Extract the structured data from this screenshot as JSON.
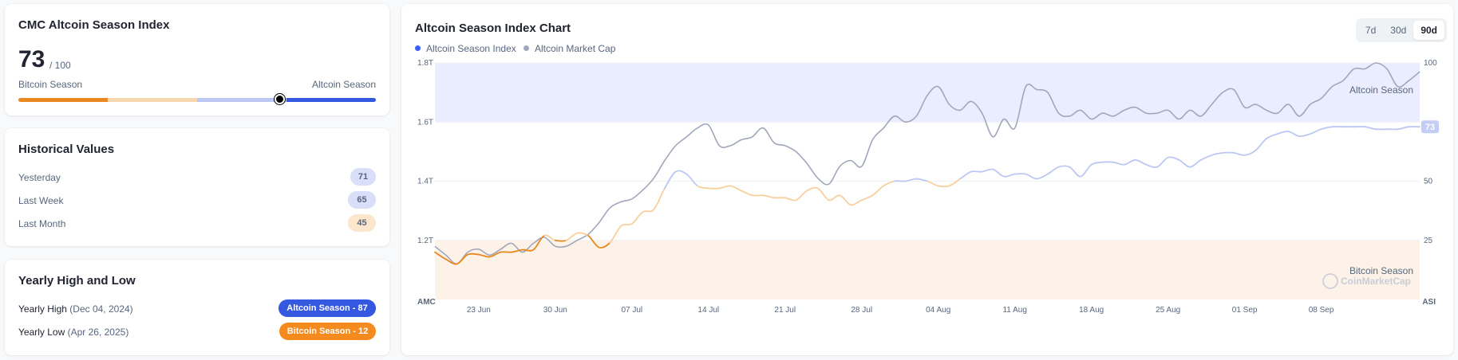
{
  "index_card": {
    "title": "CMC Altcoin Season Index",
    "value": "73",
    "max": "/ 100",
    "left_label": "Bitcoin Season",
    "right_label": "Altcoin Season",
    "index_value": 73
  },
  "historical": {
    "title": "Historical Values",
    "rows": [
      {
        "label": "Yesterday",
        "value": "71"
      },
      {
        "label": "Last Week",
        "value": "65"
      },
      {
        "label": "Last Month",
        "value": "45"
      }
    ]
  },
  "yearly": {
    "title": "Yearly High and Low",
    "high_label": "Yearly High",
    "high_date": "(Dec 04, 2024)",
    "high_badge": "Altcoin Season - 87",
    "low_label": "Yearly Low",
    "low_date": "(Apr 26, 2025)",
    "low_badge": "Bitcoin Season - 12"
  },
  "chart_header": {
    "title": "Altcoin Season Index Chart",
    "legend_index": "Altcoin Season Index",
    "legend_mcap": "Altcoin Market Cap",
    "ranges": [
      "7d",
      "30d",
      "90d"
    ],
    "active_range": "90d"
  },
  "colors": {
    "altcoin_blue": "#3861fb",
    "bitcoin_orange": "#f7931a",
    "mcap_gray": "#a1a7bb",
    "altcoin_zone": "#eaedfd",
    "bitcoin_zone": "#fdf2e7"
  },
  "chart_data": {
    "type": "line",
    "title": "Altcoin Season Index Chart",
    "x_ticks": [
      "23 Jun",
      "30 Jun",
      "07 Jul",
      "14 Jul",
      "21 Jul",
      "28 Jul",
      "04 Aug",
      "11 Aug",
      "18 Aug",
      "25 Aug",
      "01 Sep",
      "08 Sep"
    ],
    "left_axis": {
      "label": "AMC",
      "ticks": [
        "1.2T",
        "1.4T",
        "1.6T",
        "1.8T"
      ],
      "range": [
        1.0,
        1.8
      ]
    },
    "right_axis": {
      "label": "ASI",
      "ticks": [
        "25",
        "50",
        "100"
      ],
      "range": [
        0,
        100
      ]
    },
    "zones": [
      {
        "label": "Altcoin Season",
        "from": 75,
        "to": 100
      },
      {
        "label": "Bitcoin Season",
        "from": 0,
        "to": 25
      }
    ],
    "watermark": "CoinMarketCap",
    "current_value_badge": "73",
    "x_days_range": [
      0,
      90
    ],
    "series": [
      {
        "name": "Altcoin Season Index",
        "axis": "right",
        "days": [
          0,
          1,
          2,
          3,
          4,
          5,
          6,
          7,
          8,
          9,
          10,
          11,
          12,
          13,
          14,
          15,
          16,
          17,
          18,
          19,
          20,
          21,
          22,
          23,
          24,
          25,
          26,
          27,
          28,
          29,
          30,
          31,
          32,
          33,
          34,
          35,
          36,
          37,
          38,
          39,
          40,
          41,
          42,
          43,
          44,
          45,
          46,
          47,
          48,
          49,
          50,
          51,
          52,
          53,
          54,
          55,
          56,
          57,
          58,
          59,
          60,
          61,
          62,
          63,
          64,
          65,
          66,
          67,
          68,
          69,
          70,
          71,
          72,
          73,
          74,
          75,
          76,
          77,
          78,
          79,
          80,
          81,
          82,
          83,
          84,
          85,
          86,
          87,
          88,
          89,
          90
        ],
        "values": [
          20,
          17,
          15,
          19,
          19,
          18,
          20,
          20,
          21,
          21,
          27,
          25,
          25,
          28,
          27,
          22,
          24,
          31,
          32,
          37,
          38,
          47,
          54,
          53,
          48,
          47,
          47,
          48,
          46,
          44,
          44,
          43,
          43,
          42,
          46,
          47,
          42,
          44,
          40,
          42,
          44,
          48,
          50,
          50,
          51,
          50,
          48,
          48,
          51,
          54,
          54,
          55,
          52,
          53,
          53,
          51,
          53,
          56,
          56,
          52,
          57,
          58,
          58,
          57,
          59,
          57,
          56,
          60,
          59,
          56,
          59,
          61,
          62,
          62,
          61,
          63,
          68,
          70,
          71,
          69,
          70,
          72,
          73,
          73,
          73,
          73,
          72,
          72,
          72,
          73,
          73
        ]
      },
      {
        "name": "Altcoin Market Cap",
        "axis": "left",
        "days": [
          0,
          1,
          2,
          3,
          4,
          5,
          6,
          7,
          8,
          9,
          10,
          11,
          12,
          13,
          14,
          15,
          16,
          17,
          18,
          19,
          20,
          21,
          22,
          23,
          24,
          25,
          26,
          27,
          28,
          29,
          30,
          31,
          32,
          33,
          34,
          35,
          36,
          37,
          38,
          39,
          40,
          41,
          42,
          43,
          44,
          45,
          46,
          47,
          48,
          49,
          50,
          51,
          52,
          53,
          54,
          55,
          56,
          57,
          58,
          59,
          60,
          61,
          62,
          63,
          64,
          65,
          66,
          67,
          68,
          69,
          70,
          71,
          72,
          73,
          74,
          75,
          76,
          77,
          78,
          79,
          80,
          81,
          82,
          83,
          84,
          85,
          86,
          87,
          88,
          89,
          90
        ],
        "values": [
          1.18,
          1.15,
          1.12,
          1.16,
          1.17,
          1.15,
          1.17,
          1.19,
          1.16,
          1.19,
          1.21,
          1.18,
          1.18,
          1.2,
          1.22,
          1.26,
          1.31,
          1.33,
          1.34,
          1.37,
          1.41,
          1.47,
          1.52,
          1.55,
          1.58,
          1.59,
          1.52,
          1.52,
          1.54,
          1.55,
          1.58,
          1.53,
          1.52,
          1.5,
          1.46,
          1.41,
          1.39,
          1.45,
          1.47,
          1.45,
          1.54,
          1.58,
          1.62,
          1.6,
          1.62,
          1.69,
          1.72,
          1.66,
          1.64,
          1.67,
          1.63,
          1.55,
          1.61,
          1.58,
          1.72,
          1.71,
          1.7,
          1.63,
          1.62,
          1.64,
          1.61,
          1.63,
          1.62,
          1.64,
          1.65,
          1.63,
          1.63,
          1.64,
          1.61,
          1.64,
          1.62,
          1.66,
          1.7,
          1.71,
          1.65,
          1.66,
          1.64,
          1.63,
          1.66,
          1.62,
          1.66,
          1.68,
          1.72,
          1.74,
          1.78,
          1.78,
          1.8,
          1.78,
          1.72,
          1.74,
          1.77
        ]
      }
    ]
  }
}
